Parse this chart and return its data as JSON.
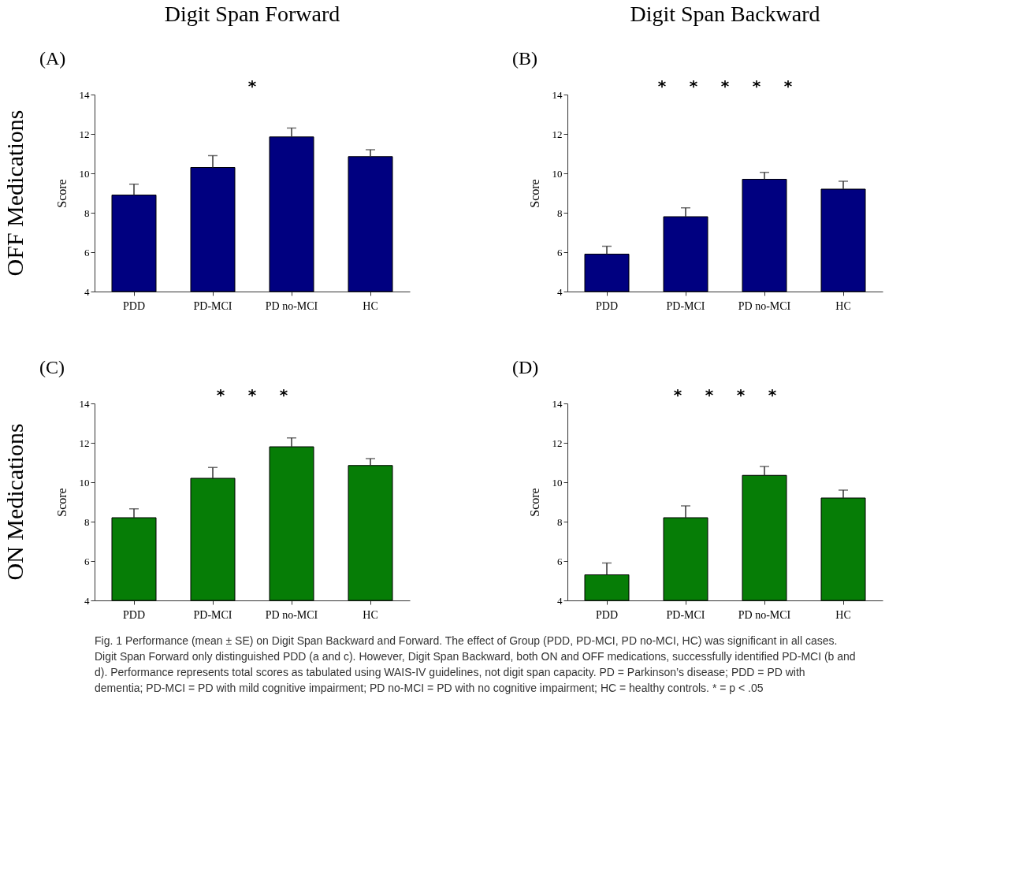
{
  "chart_data": [
    {
      "type": "bar",
      "title": "Digit Span Forward",
      "ylabel": "Score",
      "categories": [
        "PDD",
        "PD-MCI",
        "PD no-MCI",
        "HC"
      ],
      "values": [
        8.9,
        10.3,
        11.85,
        10.85
      ],
      "errors": [
        [
          8.9,
          9.45
        ],
        [
          10.3,
          10.9
        ],
        [
          11.85,
          12.3
        ],
        [
          10.85,
          11.2
        ]
      ],
      "colors": [
        "#000080",
        "#000080",
        "#000080",
        "#000080"
      ],
      "ylim": [
        4,
        14
      ],
      "yticks": [
        4,
        6,
        8,
        10,
        12,
        14
      ],
      "annotations": [
        "(A)",
        "OFF Medications",
        "*"
      ]
    },
    {
      "type": "bar",
      "title": "Digit Span Backward",
      "ylabel": "Score",
      "categories": [
        "PDD",
        "PD-MCI",
        "PD no-MCI",
        "HC"
      ],
      "values": [
        5.9,
        7.8,
        9.7,
        9.2
      ],
      "errors": [
        [
          5.9,
          6.3
        ],
        [
          7.8,
          8.25
        ],
        [
          9.7,
          10.05
        ],
        [
          9.2,
          9.6
        ]
      ],
      "colors": [
        "#000080",
        "#000080",
        "#000080",
        "#000080"
      ],
      "ylim": [
        4,
        14
      ],
      "yticks": [
        4,
        6,
        8,
        10,
        12,
        14
      ],
      "annotations": [
        "(B)",
        "*",
        "*",
        "*",
        "*",
        "*"
      ]
    },
    {
      "type": "bar",
      "ylabel": "Score",
      "categories": [
        "PDD",
        "PD-MCI",
        "PD no-MCI",
        "HC"
      ],
      "values": [
        8.2,
        10.2,
        11.8,
        10.85
      ],
      "errors": [
        [
          8.2,
          8.65
        ],
        [
          10.2,
          10.75
        ],
        [
          11.8,
          12.25
        ],
        [
          10.85,
          11.2
        ]
      ],
      "colors": [
        "#067d06",
        "#067d06",
        "#067d06",
        "#067d06"
      ],
      "ylim": [
        4,
        14
      ],
      "yticks": [
        4,
        6,
        8,
        10,
        12,
        14
      ],
      "annotations": [
        "(C)",
        "ON Medications",
        "*",
        "*",
        "*"
      ]
    },
    {
      "type": "bar",
      "ylabel": "Score",
      "categories": [
        "PDD",
        "PD-MCI",
        "PD no-MCI",
        "HC"
      ],
      "values": [
        5.3,
        8.2,
        10.35,
        9.2
      ],
      "errors": [
        [
          5.3,
          5.9
        ],
        [
          8.2,
          8.8
        ],
        [
          10.35,
          10.8
        ],
        [
          9.2,
          9.6
        ]
      ],
      "colors": [
        "#067d06",
        "#067d06",
        "#067d06",
        "#067d06"
      ],
      "ylim": [
        4,
        14
      ],
      "yticks": [
        4,
        6,
        8,
        10,
        12,
        14
      ],
      "annotations": [
        "(D)",
        "*",
        "*",
        "*",
        "*"
      ]
    },
    {
      "type": "other",
      "annotations": [
        "Fig. 1 Performance (mean ± SE) on Digit Span Backward and Forward. The effect of Group (PDD, PD-MCI, PD no-MCI, HC) was significant in all cases. Digit Span Forward only distinguished PDD (a and c). However, Digit Span Backward, both ON and OFF medications, successfully identified PD-MCI (b and d). Performance represents total scores as tabulated using WAIS-IV guidelines, not digit span capacity. PD = Parkinson’s disease; PDD = PD with dementia; PD-MCI = PD with mild cognitive impairment; PD no-MCI = PD with no cognitive impairment; HC = healthy controls. * = p < .05"
      ]
    }
  ]
}
